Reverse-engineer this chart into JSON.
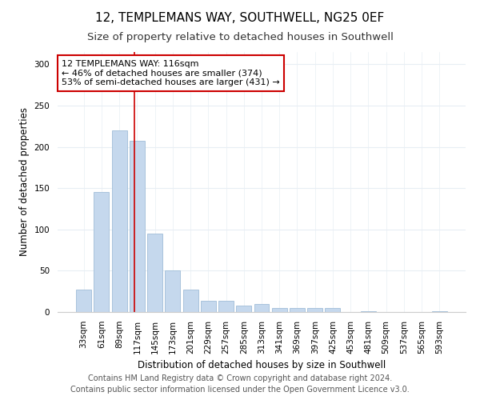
{
  "title": "12, TEMPLEMANS WAY, SOUTHWELL, NG25 0EF",
  "subtitle": "Size of property relative to detached houses in Southwell",
  "xlabel": "Distribution of detached houses by size in Southwell",
  "ylabel": "Number of detached properties",
  "categories": [
    "33sqm",
    "61sqm",
    "89sqm",
    "117sqm",
    "145sqm",
    "173sqm",
    "201sqm",
    "229sqm",
    "257sqm",
    "285sqm",
    "313sqm",
    "341sqm",
    "369sqm",
    "397sqm",
    "425sqm",
    "453sqm",
    "481sqm",
    "509sqm",
    "537sqm",
    "565sqm",
    "593sqm"
  ],
  "values": [
    27,
    145,
    220,
    207,
    95,
    50,
    27,
    14,
    14,
    8,
    10,
    5,
    5,
    5,
    5,
    0,
    1,
    0,
    0,
    0,
    1
  ],
  "bar_color": "#c5d8ed",
  "bar_edge_color": "#a0bdd8",
  "property_line_x": 2.85,
  "property_line_color": "#cc0000",
  "annotation_text": "12 TEMPLEMANS WAY: 116sqm\n← 46% of detached houses are smaller (374)\n53% of semi-detached houses are larger (431) →",
  "annotation_box_color": "#ffffff",
  "annotation_box_edge_color": "#cc0000",
  "ylim": [
    0,
    315
  ],
  "yticks": [
    0,
    50,
    100,
    150,
    200,
    250,
    300
  ],
  "background_color": "#ffffff",
  "plot_bg_color": "#ffffff",
  "grid_color": "#e8eef4",
  "footer_line1": "Contains HM Land Registry data © Crown copyright and database right 2024.",
  "footer_line2": "Contains public sector information licensed under the Open Government Licence v3.0.",
  "title_fontsize": 11,
  "subtitle_fontsize": 9.5,
  "axis_label_fontsize": 8.5,
  "tick_fontsize": 7.5,
  "annotation_fontsize": 8,
  "footer_fontsize": 7
}
